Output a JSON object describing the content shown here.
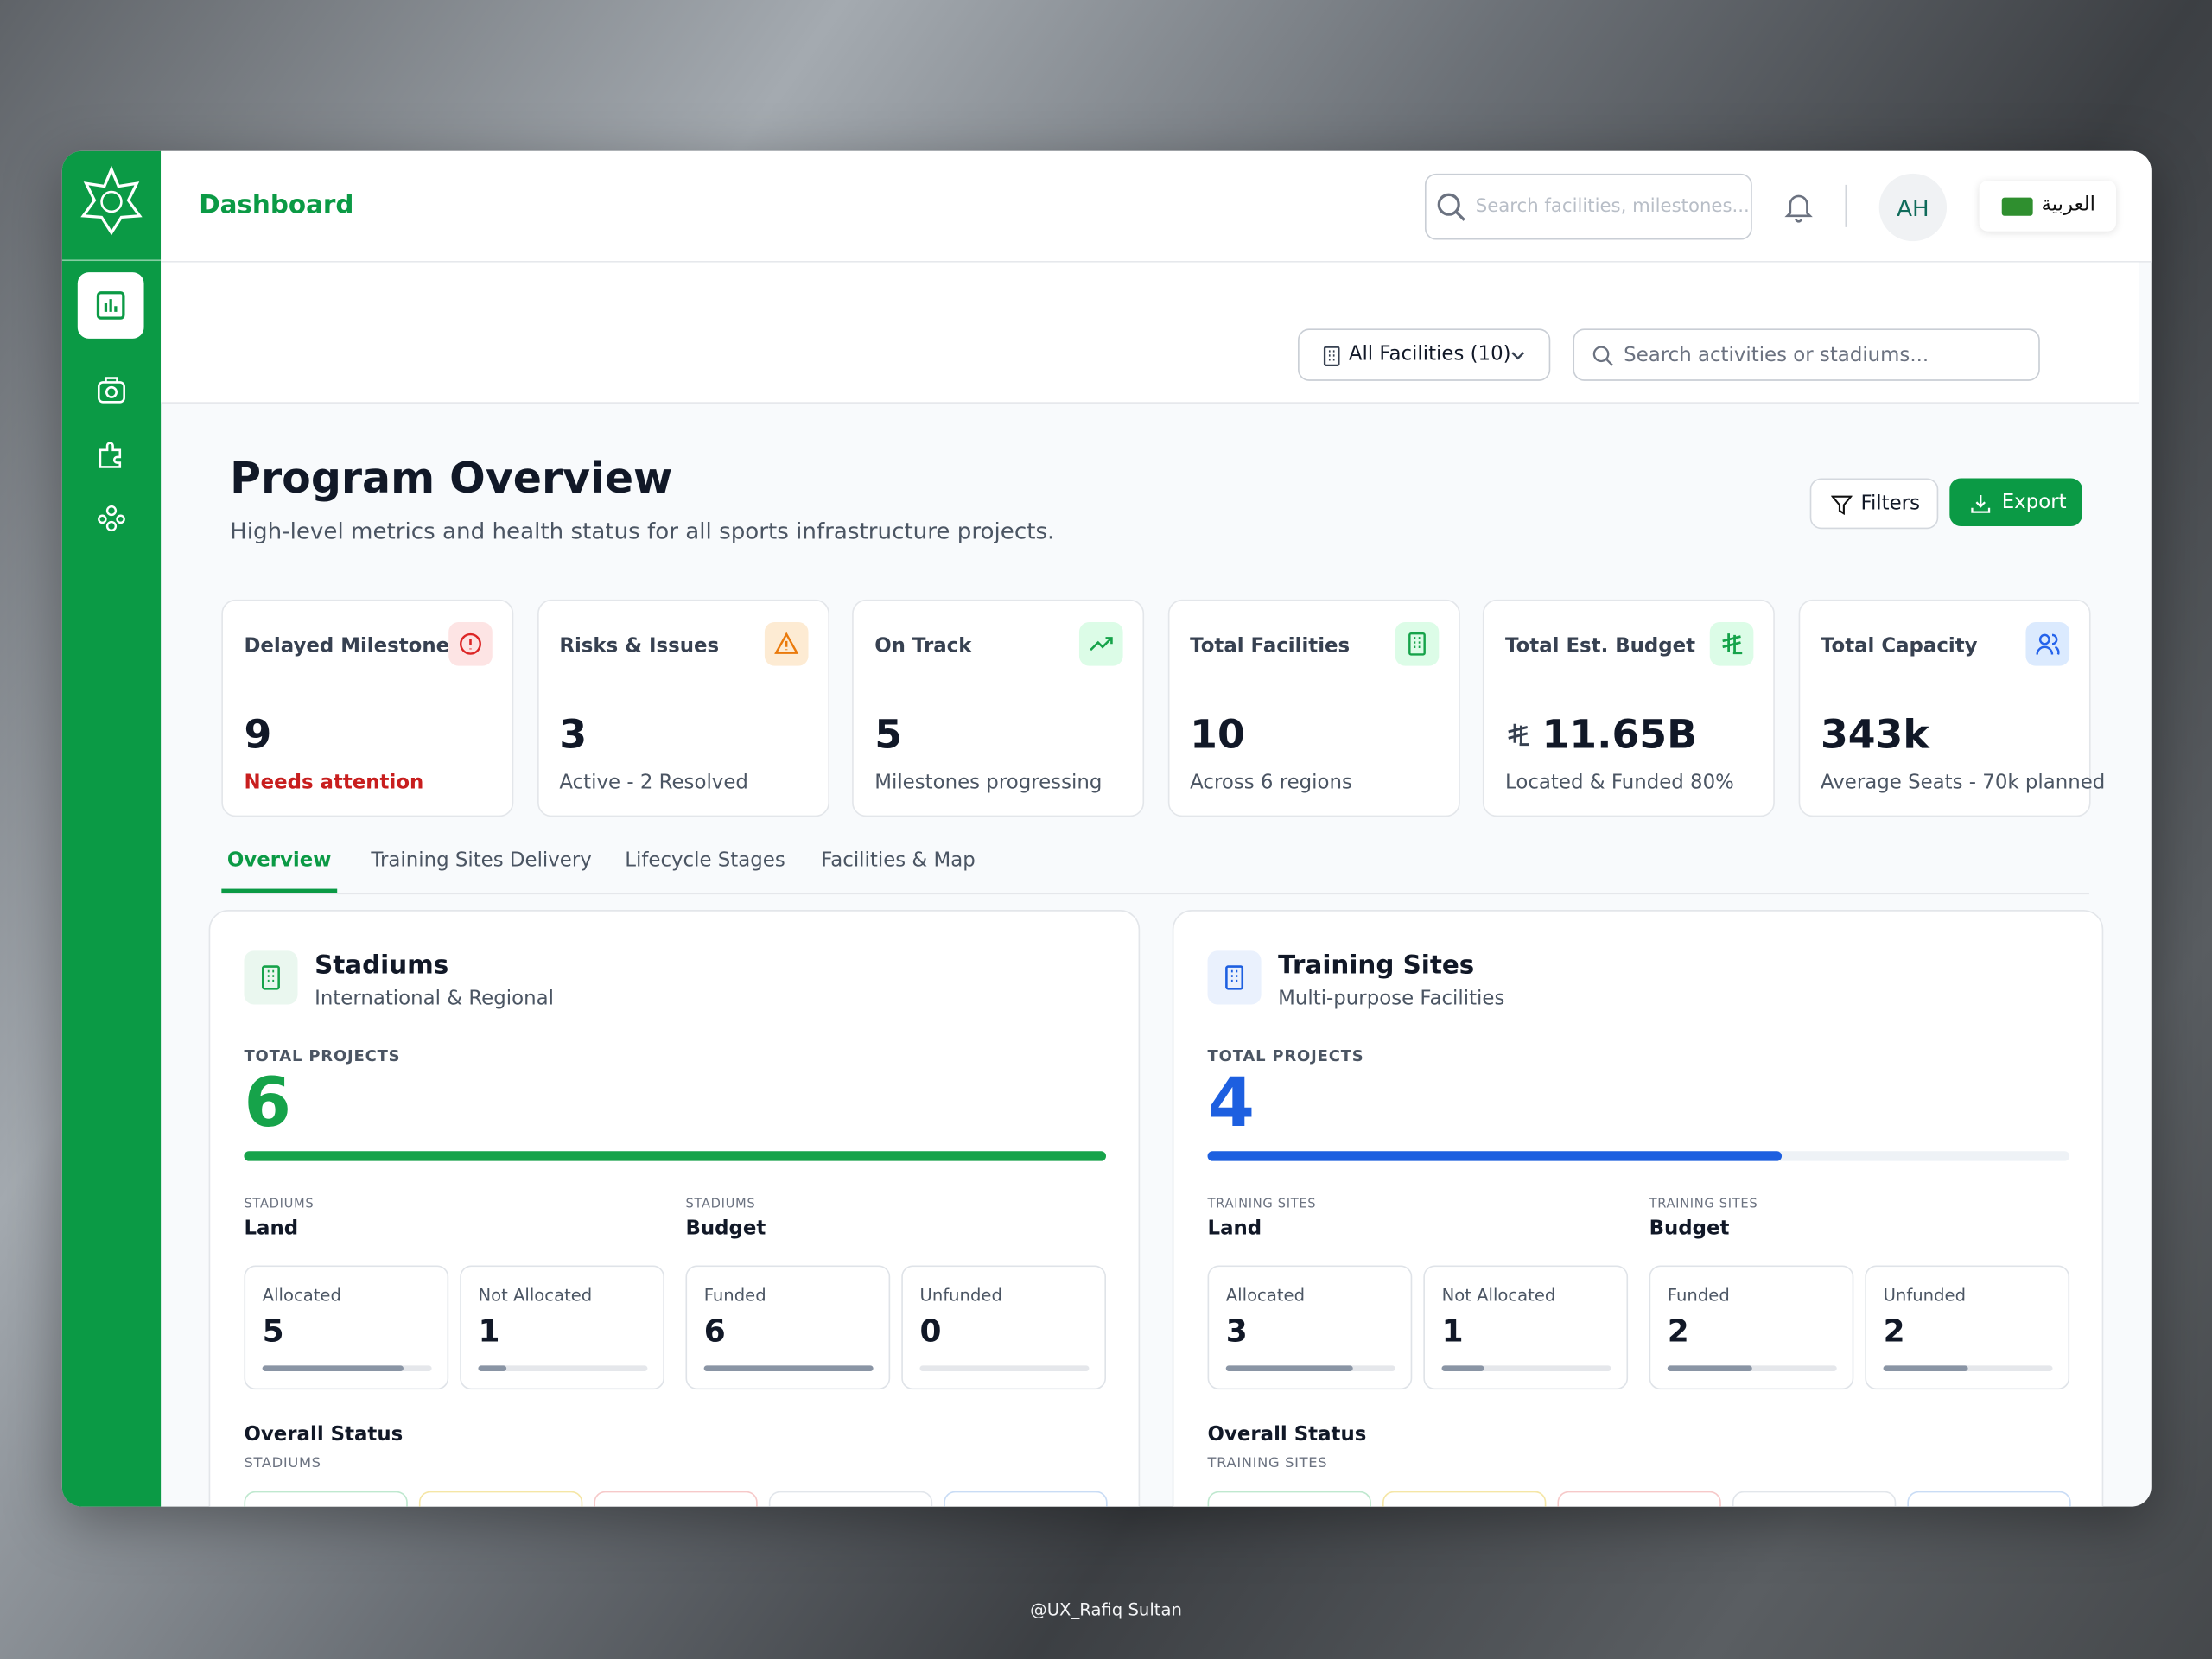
{
  "header": {
    "title": "Dashboard",
    "search_placeholder": "Search facilities, milestones...",
    "avatar": "AH",
    "language": "العربية"
  },
  "toolbar": {
    "facility_filter": "All Facilities (10)",
    "search_placeholder": "Search activities or stadiums..."
  },
  "page": {
    "title": "Program Overview",
    "subtitle": "High-level metrics and health status for all sports infrastructure projects.",
    "filters": "Filters",
    "export": "Export"
  },
  "kpis": [
    {
      "label": "Delayed Milestones",
      "value": "9",
      "note": "Needs attention",
      "tone": "red"
    },
    {
      "label": "Risks & Issues",
      "value": "3",
      "note": "Active - 2 Resolved",
      "tone": "orange"
    },
    {
      "label": "On Track",
      "value": "5",
      "note": "Milestones progressing",
      "tone": "green"
    },
    {
      "label": "Total Facilities",
      "value": "10",
      "note": "Across 6 regions",
      "tone": "green"
    },
    {
      "label": "Total Est. Budget",
      "value": "11.65B",
      "note": "Located & Funded 80%",
      "tone": "green"
    },
    {
      "label": "Total Capacity",
      "value": "343k",
      "note": "Average Seats - 70k planned",
      "tone": "blue"
    }
  ],
  "tabs": [
    "Overview",
    "Training Sites Delivery",
    "Lifecycle Stages",
    "Facilities & Map"
  ],
  "active_tab": 0,
  "panels": [
    {
      "title": "Stadiums",
      "subtitle": "International & Regional",
      "total_label": "TOTAL PROJECTS",
      "total": 6,
      "color": "#16a34a",
      "groups": [
        {
          "caption": "STADIUMS",
          "title": "Land",
          "items": [
            {
              "label": "Allocated",
              "value": 5
            },
            {
              "label": "Not Allocated",
              "value": 1
            }
          ]
        },
        {
          "caption": "STADIUMS",
          "title": "Budget",
          "items": [
            {
              "label": "Funded",
              "value": 6
            },
            {
              "label": "Unfunded",
              "value": 0
            }
          ]
        }
      ],
      "status_title": "Overall Status",
      "status_caption": "STADIUMS"
    },
    {
      "title": "Training Sites",
      "subtitle": "Multi-purpose Facilities",
      "total_label": "TOTAL PROJECTS",
      "total": 4,
      "color": "#1d5fe0",
      "groups": [
        {
          "caption": "TRAINING SITES",
          "title": "Land",
          "items": [
            {
              "label": "Allocated",
              "value": 3
            },
            {
              "label": "Not Allocated",
              "value": 1
            }
          ]
        },
        {
          "caption": "TRAINING SITES",
          "title": "Budget",
          "items": [
            {
              "label": "Funded",
              "value": 2
            },
            {
              "label": "Unfunded",
              "value": 2
            }
          ]
        }
      ],
      "status_title": "Overall Status",
      "status_caption": "TRAINING SITES"
    }
  ],
  "footer": "@UX_Rafiq Sultan"
}
